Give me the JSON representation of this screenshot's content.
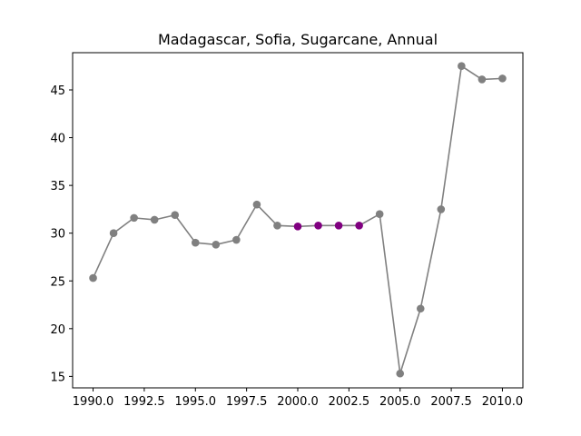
{
  "chart_data": {
    "type": "line",
    "title": "Madagascar, Sofia, Sugarcane, Annual",
    "xlabel": "",
    "ylabel": "",
    "xlim": [
      1989.0,
      2011.0
    ],
    "ylim": [
      13.8,
      48.9
    ],
    "x_ticks": [
      1990.0,
      1992.5,
      1995.0,
      1997.5,
      2000.0,
      2002.5,
      2005.0,
      2007.5,
      2010.0
    ],
    "x_tick_labels": [
      "1990.0",
      "1992.5",
      "1995.0",
      "1997.5",
      "2000.0",
      "2002.5",
      "2005.0",
      "2007.5",
      "2010.0"
    ],
    "y_ticks": [
      15,
      20,
      25,
      30,
      35,
      40,
      45
    ],
    "y_tick_labels": [
      "15",
      "20",
      "25",
      "30",
      "35",
      "40",
      "45"
    ],
    "grid": false,
    "series": [
      {
        "x": [
          1990,
          1991,
          1992,
          1993,
          1994,
          1995,
          1996,
          1997,
          1998,
          1999,
          2000,
          2001,
          2002,
          2003,
          2004,
          2005,
          2006,
          2007,
          2008,
          2009,
          2010
        ],
        "values": [
          25.3,
          30.0,
          31.6,
          31.4,
          31.9,
          29.0,
          28.8,
          29.3,
          33.0,
          30.8,
          30.7,
          30.8,
          30.8,
          30.8,
          32.0,
          15.3,
          22.1,
          32.5,
          47.5,
          46.1,
          46.2
        ],
        "highlighted_x": [
          2000,
          2001,
          2002,
          2003
        ]
      }
    ],
    "colors": {
      "line": "#808080",
      "marker": "#808080",
      "highlight_marker": "#800080",
      "axes": "#000000"
    }
  }
}
